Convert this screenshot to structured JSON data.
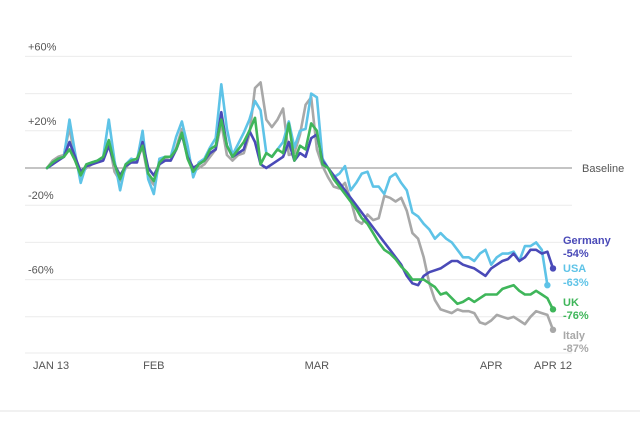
{
  "chart_data": {
    "type": "line",
    "ylim": [
      -100,
      68
    ],
    "y_ticks": [
      {
        "value": 60,
        "label": "+60%"
      },
      {
        "value": 20,
        "label": "+20%"
      },
      {
        "value": -20,
        "label": "-20%"
      },
      {
        "value": -60,
        "label": "-60%"
      }
    ],
    "grid_values": [
      40,
      -40,
      -80
    ],
    "baseline": {
      "value": 0,
      "label": "Baseline"
    },
    "x_ticks": [
      {
        "day": 0,
        "label": "JAN 13"
      },
      {
        "day": 19,
        "label": "FEB"
      },
      {
        "day": 48,
        "label": "MAR"
      },
      {
        "day": 79,
        "label": "APR"
      },
      {
        "day": 90,
        "label": "APR 12"
      }
    ],
    "x_start": "2020-01-13",
    "x_end": "2020-04-12",
    "grid": true,
    "series": [
      {
        "name": "Italy",
        "end_label": "Italy",
        "end_value_label": "-87%",
        "color": "#a8a8a8",
        "values": [
          0,
          4,
          6,
          7,
          22,
          4,
          -3,
          0,
          2,
          4,
          5,
          14,
          -2,
          -7,
          0,
          4,
          5,
          11,
          -5,
          -9,
          2,
          5,
          4,
          11,
          21,
          6,
          -2,
          0,
          2,
          6,
          10,
          24,
          7,
          4,
          7,
          8,
          18,
          43,
          46,
          26,
          22,
          26,
          32,
          7,
          8,
          18,
          34,
          38,
          10,
          1,
          -5,
          -10,
          -11,
          -8,
          -17,
          -28,
          -30,
          -25,
          -28,
          -27,
          -15,
          -16,
          -18,
          -16,
          -23,
          -35,
          -38,
          -48,
          -62,
          -71,
          -76,
          -77,
          -78,
          -76,
          -77,
          -77,
          -78,
          -83,
          -84,
          -82,
          -79,
          -80,
          -81,
          -80,
          -82,
          -84,
          -80,
          -77,
          -78,
          -79,
          -87
        ]
      },
      {
        "name": "USA",
        "end_label": "USA",
        "end_value_label": "-63%",
        "color": "#5ec3e7",
        "values": [
          0,
          2,
          5,
          6,
          26,
          8,
          -8,
          2,
          3,
          4,
          6,
          26,
          4,
          -12,
          2,
          5,
          4,
          20,
          -6,
          -14,
          5,
          6,
          6,
          17,
          25,
          12,
          -5,
          3,
          5,
          11,
          16,
          45,
          21,
          7,
          13,
          19,
          26,
          36,
          31,
          8,
          6,
          10,
          14,
          25,
          11,
          20,
          21,
          40,
          38,
          5,
          0,
          -5,
          -3,
          1,
          -12,
          -8,
          -3,
          -2,
          -10,
          -10,
          -14,
          -5,
          -3,
          -8,
          -12,
          -24,
          -26,
          -30,
          -33,
          -38,
          -35,
          -38,
          -40,
          -44,
          -48,
          -48,
          -50,
          -46,
          -44,
          -52,
          -48,
          -46,
          -46,
          -45,
          -50,
          -42,
          -42,
          -40,
          -44,
          -63
        ]
      },
      {
        "name": "Germany",
        "end_label": "Germany",
        "end_value_label": "-54%",
        "color": "#4a4ab8",
        "values": [
          0,
          2,
          4,
          6,
          14,
          6,
          -2,
          1,
          2,
          3,
          4,
          12,
          2,
          -4,
          1,
          3,
          3,
          14,
          0,
          -4,
          2,
          4,
          4,
          10,
          18,
          6,
          0,
          2,
          4,
          8,
          10,
          30,
          12,
          6,
          8,
          10,
          20,
          14,
          2,
          0,
          2,
          4,
          6,
          14,
          4,
          8,
          6,
          16,
          18,
          4,
          0,
          -4,
          -8,
          -12,
          -16,
          -20,
          -24,
          -28,
          -32,
          -36,
          -40,
          -44,
          -48,
          -52,
          -58,
          -62,
          -63,
          -58,
          -56,
          -55,
          -54,
          -52,
          -50,
          -50,
          -52,
          -53,
          -54,
          -56,
          -58,
          -54,
          -52,
          -50,
          -49,
          -46,
          -50,
          -48,
          -44,
          -44,
          -46,
          -45,
          -54
        ]
      },
      {
        "name": "UK",
        "end_label": "UK",
        "end_value_label": "-76%",
        "color": "#3fb65a",
        "values": [
          0,
          3,
          5,
          6,
          10,
          4,
          -4,
          2,
          3,
          4,
          6,
          15,
          2,
          -6,
          2,
          4,
          5,
          12,
          -3,
          -7,
          3,
          6,
          6,
          10,
          19,
          5,
          -2,
          2,
          4,
          10,
          12,
          26,
          12,
          6,
          10,
          14,
          20,
          27,
          2,
          8,
          6,
          10,
          8,
          24,
          4,
          12,
          10,
          24,
          20,
          2,
          0,
          -6,
          -10,
          -14,
          -18,
          -22,
          -27,
          -30,
          -35,
          -40,
          -44,
          -46,
          -49,
          -53,
          -56,
          -60,
          -60,
          -60,
          -62,
          -64,
          -68,
          -67,
          -70,
          -73,
          -72,
          -70,
          -72,
          -70,
          -68,
          -68,
          -68,
          -65,
          -64,
          -63,
          -66,
          -68,
          -68,
          -66,
          -68,
          -70,
          -76
        ]
      }
    ]
  }
}
